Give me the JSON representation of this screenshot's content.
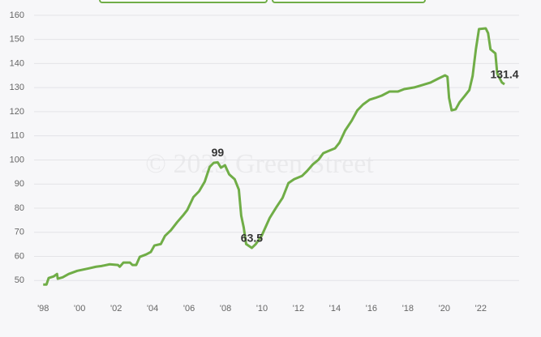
{
  "chart_data": {
    "type": "line",
    "watermark": "© 2023 Green Street",
    "xlim": [
      1997.5,
      2024.1
    ],
    "ylim": [
      42,
      163
    ],
    "xticks": [
      {
        "value": 1998,
        "label": "'98"
      },
      {
        "value": 2000,
        "label": "'00"
      },
      {
        "value": 2002,
        "label": "'02"
      },
      {
        "value": 2004,
        "label": "'04"
      },
      {
        "value": 2006,
        "label": "'06"
      },
      {
        "value": 2008,
        "label": "'08"
      },
      {
        "value": 2010,
        "label": "'10"
      },
      {
        "value": 2012,
        "label": "'12"
      },
      {
        "value": 2014,
        "label": "'14"
      },
      {
        "value": 2016,
        "label": "'16"
      },
      {
        "value": 2018,
        "label": "'18"
      },
      {
        "value": 2020,
        "label": "'20"
      },
      {
        "value": 2022,
        "label": "'22"
      }
    ],
    "yticks": [
      50,
      60,
      70,
      80,
      90,
      100,
      110,
      120,
      130,
      140,
      150,
      160
    ],
    "grid": true,
    "x": [
      1998.0,
      1998.18,
      1998.3,
      1998.58,
      1998.76,
      1998.8,
      1999.07,
      1999.4,
      1999.87,
      2000.5,
      2000.9,
      2001.2,
      2001.65,
      2002.1,
      2002.2,
      2002.4,
      2002.76,
      2002.9,
      2003.1,
      2003.3,
      2003.65,
      2003.9,
      2004.1,
      2004.45,
      2004.68,
      2005.0,
      2005.35,
      2005.66,
      2005.9,
      2006.24,
      2006.55,
      2006.86,
      2007.13,
      2007.35,
      2007.57,
      2007.75,
      2007.97,
      2008.2,
      2008.5,
      2008.73,
      2008.86,
      2009.0,
      2009.13,
      2009.44,
      2009.66,
      2009.98,
      2010.42,
      2010.78,
      2011.13,
      2011.45,
      2011.76,
      2012.2,
      2012.47,
      2012.78,
      2013.1,
      2013.36,
      2013.67,
      2014.0,
      2014.25,
      2014.56,
      2014.92,
      2015.23,
      2015.54,
      2015.9,
      2016.2,
      2016.57,
      2017.0,
      2017.46,
      2017.8,
      2018.35,
      2018.8,
      2019.24,
      2019.68,
      2020.04,
      2020.17,
      2020.26,
      2020.4,
      2020.62,
      2020.84,
      2021.1,
      2021.37,
      2021.55,
      2021.73,
      2021.9,
      2022.27,
      2022.4,
      2022.53,
      2022.8,
      2022.9,
      2023.16,
      2023.3
    ],
    "series": [
      {
        "color": "#70ad47",
        "values": [
          48.3,
          48.3,
          51,
          51.7,
          52.7,
          50.7,
          51.3,
          52.7,
          54,
          55,
          55.7,
          56,
          56.7,
          56.4,
          55.7,
          57.4,
          57.4,
          56.4,
          56.4,
          59.8,
          60.8,
          61.8,
          64.5,
          65.1,
          68.5,
          70.8,
          74.2,
          76.9,
          79.2,
          84.6,
          87,
          91,
          97.1,
          98.8,
          99,
          96.8,
          97.8,
          94,
          92,
          87.7,
          76.9,
          71.9,
          65.1,
          63.5,
          65.1,
          68.5,
          75.9,
          80.3,
          84.3,
          90.4,
          92,
          93.4,
          95.4,
          98.1,
          100.1,
          102.8,
          103.8,
          104.8,
          107.2,
          112.2,
          116.3,
          120.6,
          123,
          125,
          125.7,
          126.7,
          128.4,
          128.4,
          129.4,
          130.1,
          131.1,
          132.1,
          133.8,
          135.1,
          134.5,
          125.7,
          120.6,
          121,
          124,
          126.4,
          129,
          134.8,
          145.9,
          154.3,
          154.6,
          152.6,
          145.9,
          144.2,
          135.8,
          132.1,
          131.4
        ],
        "value_labels": [
          null,
          null,
          null,
          null,
          null,
          null,
          null,
          null,
          null,
          null,
          null,
          null,
          null,
          null,
          null,
          null,
          null,
          null,
          null,
          null,
          null,
          null,
          null,
          null,
          null,
          null,
          null,
          null,
          null,
          null,
          null,
          null,
          null,
          null,
          "99",
          null,
          null,
          null,
          null,
          null,
          null,
          null,
          null,
          "63.5",
          null,
          null,
          null,
          null,
          null,
          null,
          null,
          null,
          null,
          null,
          null,
          null,
          null,
          null,
          null,
          null,
          null,
          null,
          null,
          null,
          null,
          null,
          null,
          null,
          null,
          null,
          null,
          null,
          null,
          null,
          null,
          null,
          null,
          null,
          null,
          null,
          null,
          null,
          null,
          null,
          null,
          null,
          null,
          null,
          null,
          null,
          "131.4"
        ]
      }
    ]
  }
}
